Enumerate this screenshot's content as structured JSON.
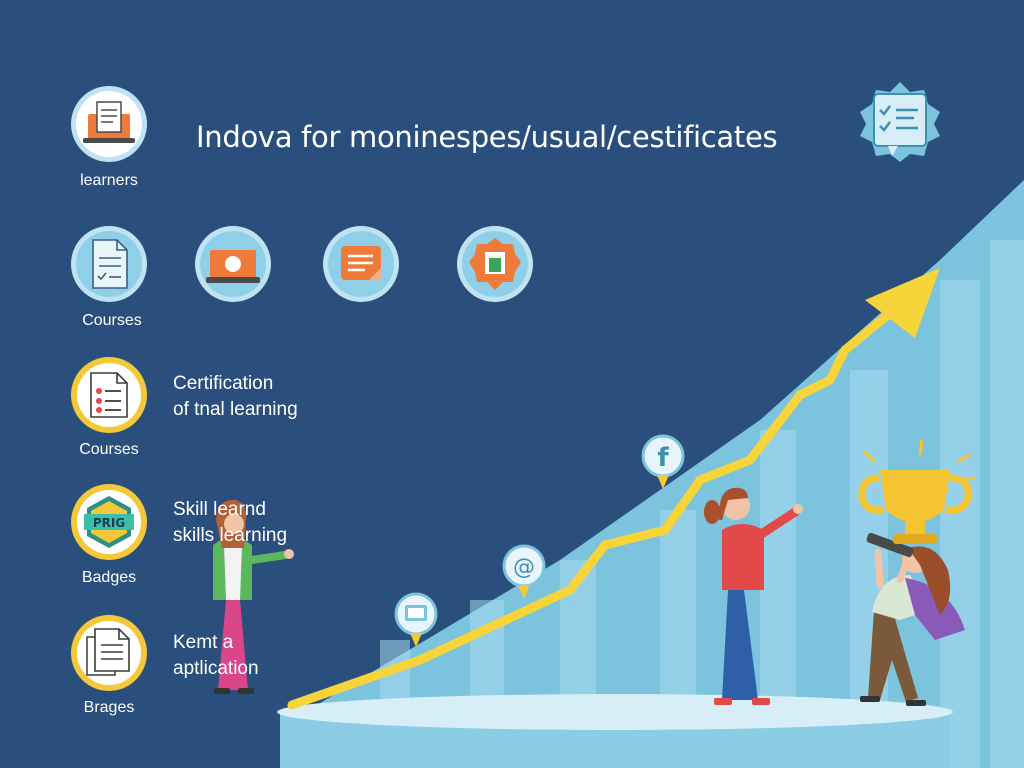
{
  "header": {
    "title": "Indova for moninespes/usual/cestificates",
    "icon": "checklist-certificate-icon"
  },
  "categories": [
    {
      "id": "learners",
      "label": "learners",
      "icon": "laptop-document-icon",
      "ring": "#bfe3f2",
      "fill": "#ffffff"
    },
    {
      "id": "courses-1",
      "label": "Courses",
      "icon": "document-check-icon",
      "ring": "#bfe3f2",
      "fill": "#8fd0e8"
    },
    {
      "id": "courses-2",
      "label": "Courses",
      "icon": "list-document-icon",
      "ring": "#f3c93a",
      "fill": "#ffffff",
      "description": [
        "Certification",
        "of tnal learning"
      ]
    },
    {
      "id": "badges",
      "label": "Badges",
      "icon": "hexagon-badge-icon",
      "ring": "#f3c93a",
      "fill": "#ffffff",
      "badge_text": "PRIG",
      "description": [
        "Skill learnd",
        "skills learning"
      ]
    },
    {
      "id": "brages",
      "label": "Brages",
      "icon": "document-stack-icon",
      "ring": "#f3c93a",
      "fill": "#ffffff",
      "description": [
        "Kemt a",
        "aptlication"
      ]
    }
  ],
  "feature_icons": [
    {
      "icon": "laptop-icon"
    },
    {
      "icon": "note-icon"
    },
    {
      "icon": "medal-badge-icon"
    }
  ],
  "chart_markers": [
    {
      "icon": "certificate-marker-icon"
    },
    {
      "icon": "at-sign-marker-icon",
      "glyph": "@"
    },
    {
      "icon": "facebook-marker-icon",
      "glyph": "f"
    }
  ],
  "colors": {
    "background": "#2b4f7c",
    "arrow": "#f6d43a",
    "bars": "#7fc4df",
    "accent_orange": "#f07a3a",
    "accent_yellow": "#f3c93a"
  }
}
